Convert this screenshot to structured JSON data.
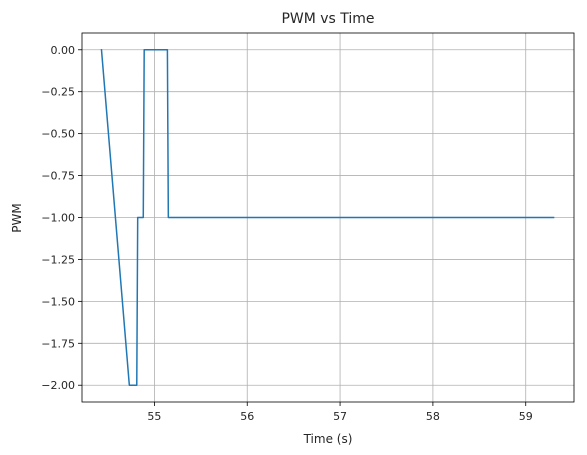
{
  "chart_data": {
    "type": "line",
    "title": "PWM vs Time",
    "xlabel": "Time (s)",
    "ylabel": "PWM",
    "xlim": [
      54.22,
      59.52
    ],
    "ylim": [
      -2.1,
      0.1
    ],
    "grid": true,
    "line_color": "#1f77b4",
    "xticks": [
      55,
      56,
      57,
      58,
      59
    ],
    "xtick_labels": [
      "55",
      "56",
      "57",
      "58",
      "59"
    ],
    "yticks": [
      0,
      -0.25,
      -0.5,
      -0.75,
      -1.0,
      -1.25,
      -1.5,
      -1.75,
      -2.0
    ],
    "ytick_labels": [
      "0.00",
      "−0.25",
      "−0.50",
      "−0.75",
      "−1.00",
      "−1.25",
      "−1.50",
      "−1.75",
      "−2.00"
    ],
    "series": [
      {
        "x": [
          54.43,
          54.73,
          54.81,
          54.82,
          54.88,
          54.89,
          55.14,
          55.15,
          59.3
        ],
        "y": [
          0,
          -2,
          -2,
          -1,
          -1,
          0,
          0,
          -1,
          -1
        ]
      }
    ]
  }
}
